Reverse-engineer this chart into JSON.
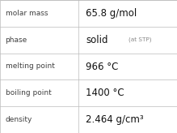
{
  "rows": [
    {
      "label": "molar mass",
      "value": "65.8 g/mol",
      "value2": null
    },
    {
      "label": "phase",
      "value": "solid",
      "value2": "(at STP)"
    },
    {
      "label": "melting point",
      "value": "966 °C",
      "value2": null
    },
    {
      "label": "boiling point",
      "value": "1400 °C",
      "value2": null
    },
    {
      "label": "density",
      "value": "2.464 g/cm³",
      "value2": null
    }
  ],
  "bg_color": "#ffffff",
  "grid_color": "#bbbbbb",
  "label_color": "#404040",
  "value_color": "#111111",
  "value2_color": "#888888",
  "label_fontsize": 6.5,
  "value_fontsize": 8.5,
  "value2_fontsize": 5.2,
  "col_split": 0.445
}
